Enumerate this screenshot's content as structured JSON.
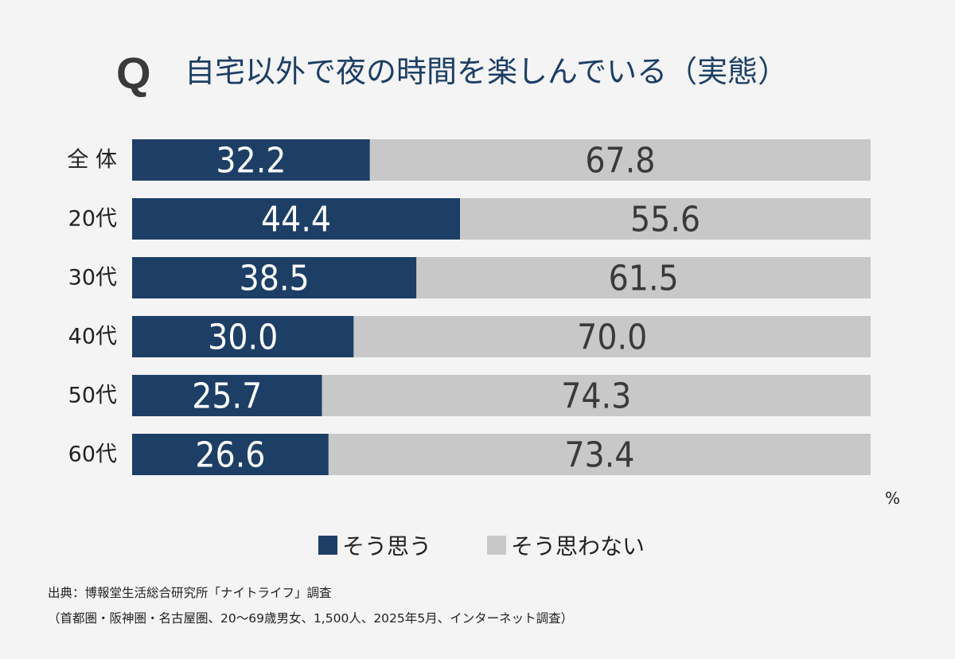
{
  "header": {
    "q_mark": "Q",
    "title": "自宅以外で夜の時間を楽しんでいる（実態）"
  },
  "chart_data": {
    "type": "bar",
    "orientation": "horizontal",
    "stacked": true,
    "categories": [
      "全 体",
      "20代",
      "30代",
      "40代",
      "50代",
      "60代"
    ],
    "series": [
      {
        "name": "そう思う",
        "values": [
          32.2,
          44.4,
          38.5,
          30.0,
          25.7,
          26.6
        ],
        "color": "#1d3f66",
        "label_color": "#ffffff"
      },
      {
        "name": "そう思わない",
        "values": [
          67.8,
          55.6,
          61.5,
          70.0,
          74.3,
          73.4
        ],
        "color": "#c8c8c8",
        "label_color": "#3a3a3a"
      }
    ],
    "xlim": [
      0,
      100
    ],
    "unit_label": "%",
    "grid": false,
    "legend_position": "bottom"
  },
  "source": {
    "line1": "出典：博報堂生活総合研究所「ナイトライフ」調査",
    "line2": "（首都圏・阪神圏・名古屋圏、20～69歳男女、1,500人、2025年5月、インターネット調査）"
  }
}
